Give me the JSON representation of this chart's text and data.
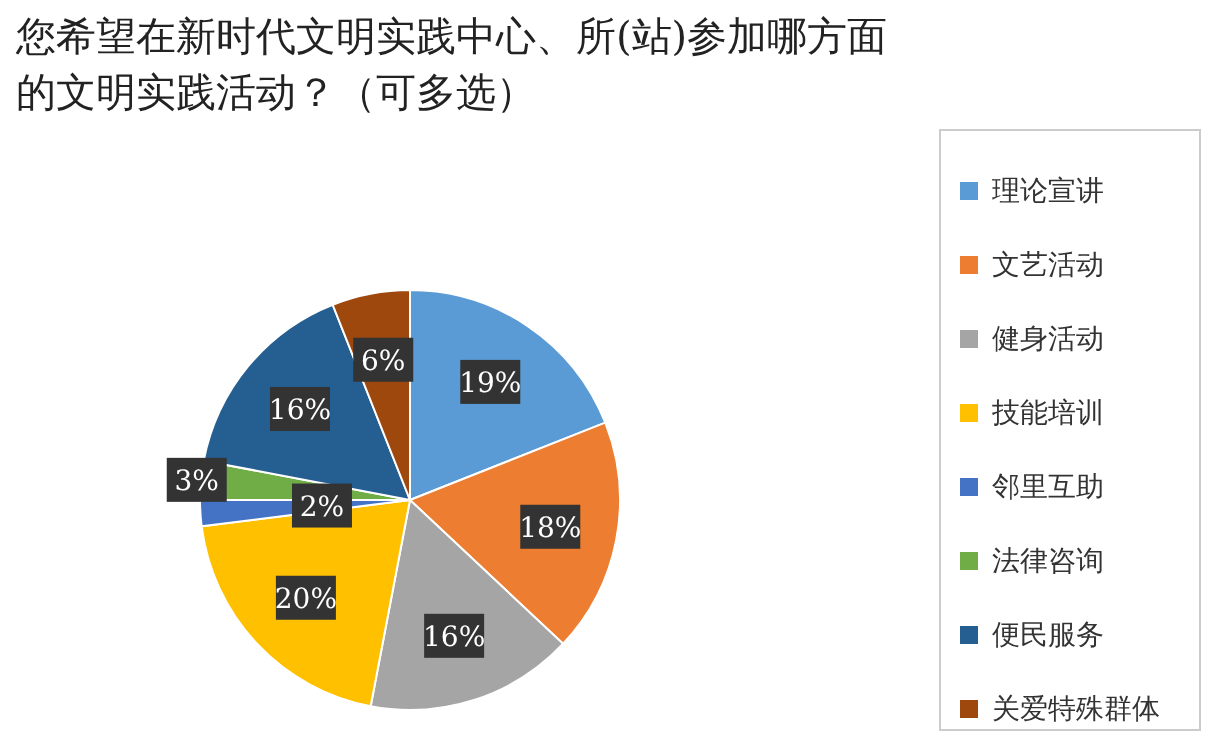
{
  "chart_data": {
    "type": "pie",
    "title": "您希望在新时代文明实践中心、所(站)参加哪方面的文明实践活动？（可多选）",
    "categories": [
      "理论宣讲",
      "文艺活动",
      "健身活动",
      "技能培训",
      "邻里互助",
      "法律咨询",
      "便民服务",
      "关爱特殊群体"
    ],
    "values": [
      19,
      18,
      16,
      20,
      2,
      3,
      16,
      6
    ],
    "colors": [
      "#5b9bd5",
      "#ed7d31",
      "#a5a5a5",
      "#ffc000",
      "#4472c4",
      "#70ad47",
      "#255e91",
      "#9e480e"
    ],
    "value_labels": [
      "19%",
      "18%",
      "16%",
      "20%",
      "2%",
      "3%",
      "16%",
      "6%"
    ],
    "legend": "right"
  }
}
